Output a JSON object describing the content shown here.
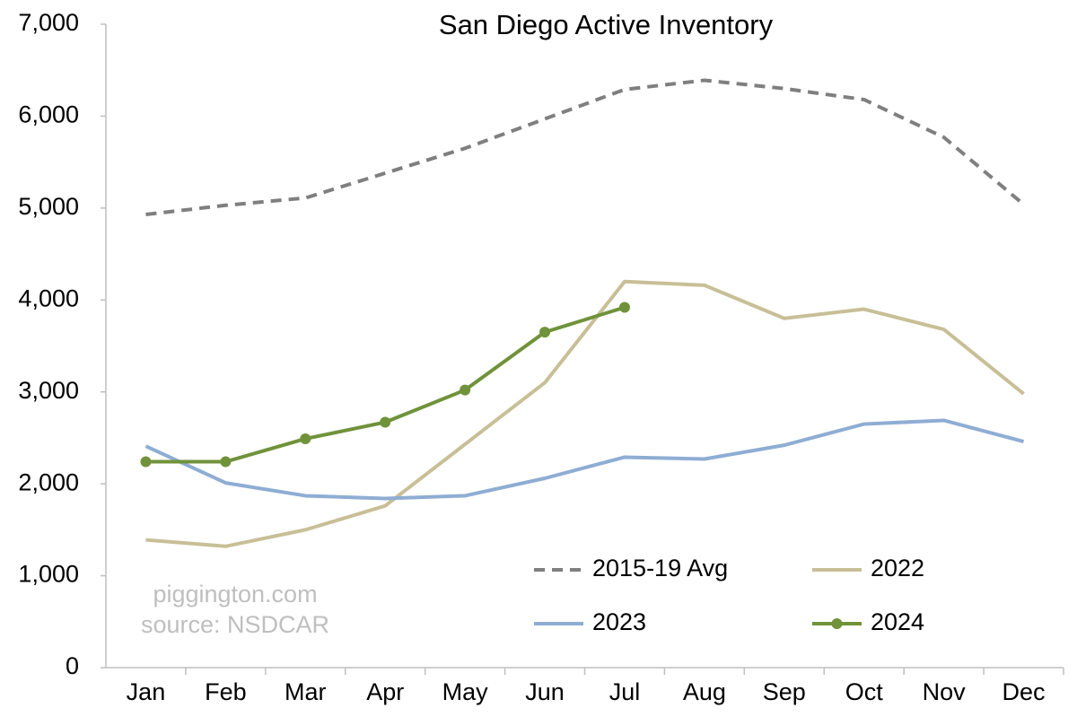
{
  "chart_data": {
    "type": "line",
    "title": "San Diego Active Inventory",
    "categories": [
      "Jan",
      "Feb",
      "Mar",
      "Apr",
      "May",
      "Jun",
      "Jul",
      "Aug",
      "Sep",
      "Oct",
      "Nov",
      "Dec"
    ],
    "series": [
      {
        "name": "2015-19 Avg",
        "color": "#7f7f7f",
        "dash": true,
        "markers": false,
        "values": [
          4930,
          5030,
          5110,
          5380,
          5650,
          5970,
          6290,
          6390,
          6300,
          6180,
          5770,
          5040
        ]
      },
      {
        "name": "2022",
        "color": "#c8bf97",
        "dash": false,
        "markers": false,
        "values": [
          1390,
          1320,
          1500,
          1760,
          2430,
          3100,
          4200,
          4160,
          3800,
          3900,
          3680,
          2980
        ]
      },
      {
        "name": "2023",
        "color": "#8eadd3",
        "dash": false,
        "markers": false,
        "values": [
          2410,
          2010,
          1870,
          1840,
          1870,
          2060,
          2290,
          2270,
          2420,
          2650,
          2690,
          2460
        ]
      },
      {
        "name": "2024",
        "color": "#70923a",
        "dash": false,
        "markers": true,
        "values": [
          2240,
          2240,
          2490,
          2670,
          3020,
          3650,
          3920,
          null,
          null,
          null,
          null,
          null
        ]
      }
    ],
    "ylim": [
      0,
      7000
    ],
    "yticks": [
      0,
      {
        "value": 1000,
        "label": "1,000"
      },
      {
        "value": 2000,
        "label": "2,000"
      },
      {
        "value": 3000,
        "label": "3,000"
      },
      {
        "value": 4000,
        "label": "4,000"
      },
      {
        "value": 5000,
        "label": "5,000"
      },
      {
        "value": 6000,
        "label": "6,000"
      },
      {
        "value": 7000,
        "label": "7,000"
      }
    ],
    "grid": false,
    "annotations": [
      "piggington.com",
      "source: NSDCAR"
    ]
  }
}
